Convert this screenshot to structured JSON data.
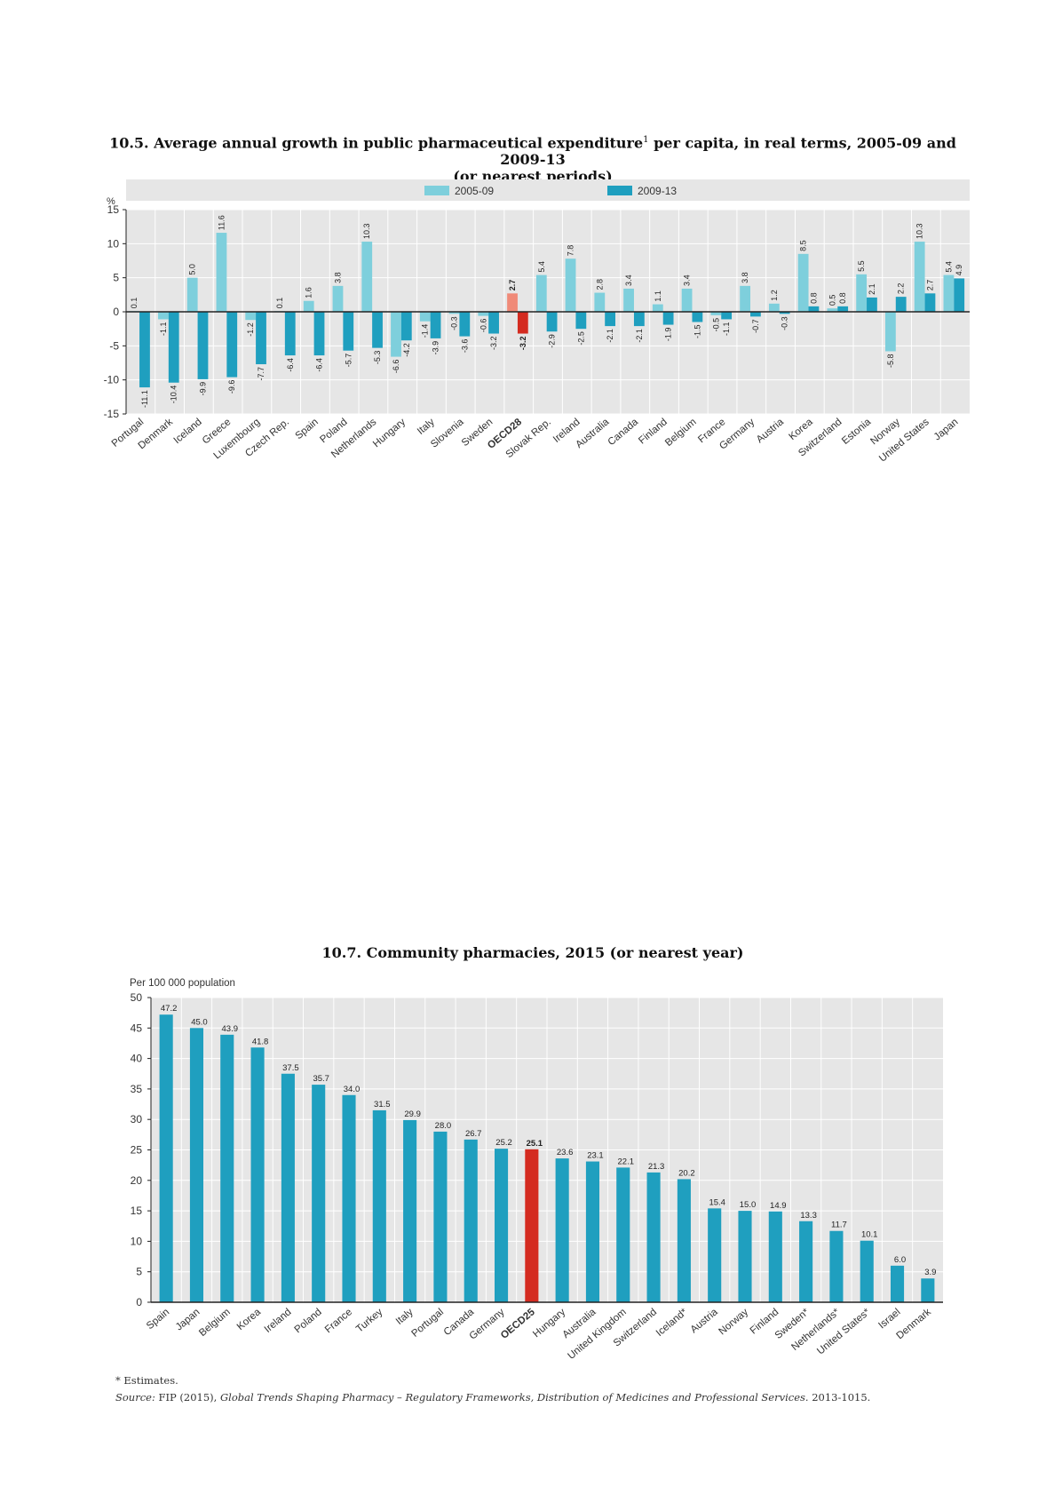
{
  "chart_data": [
    {
      "type": "bar",
      "title_main": "10.5. Average annual growth in public pharmaceutical expenditure",
      "title_sup": "1",
      "title_rest": " per capita, in real terms, 2005-09 and 2009-13",
      "title_line2": "(or nearest periods)",
      "ylabel": "%",
      "ylim": [
        -15,
        15
      ],
      "yticks": [
        15,
        10,
        5,
        0,
        -5,
        -10,
        -15
      ],
      "legend_position": "top",
      "categories": [
        "Portugal",
        "Denmark",
        "Iceland",
        "Greece",
        "Luxembourg",
        "Czech Rep.",
        "Spain",
        "Poland",
        "Netherlands",
        "Hungary",
        "Italy",
        "Slovenia",
        "Sweden",
        "OECD28",
        "Slovak Rep.",
        "Ireland",
        "Australia",
        "Canada",
        "Finland",
        "Belgium",
        "France",
        "Germany",
        "Austria",
        "Korea",
        "Switzerland",
        "Estonia",
        "Norway",
        "United States",
        "Japan"
      ],
      "highlight_category": "OECD28",
      "series": [
        {
          "name": "2005-09",
          "color": "#7ecfdc",
          "highlight_color": "#f08a78",
          "values": [
            0.1,
            -1.1,
            5.0,
            11.6,
            -1.2,
            0.1,
            1.6,
            3.8,
            10.3,
            -6.6,
            -1.4,
            -0.3,
            -0.6,
            2.7,
            5.4,
            7.8,
            2.8,
            3.4,
            1.1,
            3.4,
            -0.5,
            3.8,
            1.2,
            8.5,
            0.5,
            5.5,
            -5.8,
            10.3,
            5.4
          ]
        },
        {
          "name": "2009-13",
          "color": "#1f9fbf",
          "highlight_color": "#d42b20",
          "values": [
            -11.1,
            -10.4,
            -9.9,
            -9.6,
            -7.7,
            -6.4,
            -6.4,
            -5.7,
            -5.3,
            -4.2,
            -3.9,
            -3.6,
            -3.2,
            -3.2,
            -2.9,
            -2.5,
            -2.1,
            -2.1,
            -1.9,
            -1.5,
            -1.1,
            -0.7,
            -0.3,
            0.8,
            0.8,
            2.1,
            2.2,
            2.7,
            4.9
          ]
        }
      ]
    },
    {
      "type": "bar",
      "title": "10.7. Community pharmacies, 2015 (or nearest year)",
      "ylabel": "Per 100 000 population",
      "ylim": [
        0,
        50
      ],
      "yticks": [
        50,
        45,
        40,
        35,
        30,
        25,
        20,
        15,
        10,
        5,
        0
      ],
      "categories": [
        "Spain",
        "Japan",
        "Belgium",
        "Korea",
        "Ireland",
        "Poland",
        "France",
        "Turkey",
        "Italy",
        "Portugal",
        "Canada",
        "Germany",
        "OECD25",
        "Hungary",
        "Australia",
        "United Kingdom",
        "Switzerland",
        "Iceland*",
        "Austria",
        "Norway",
        "Finland",
        "Sweden*",
        "Netherlands*",
        "United States*",
        "Israel",
        "Denmark"
      ],
      "values": [
        47.2,
        45.0,
        43.9,
        41.8,
        37.5,
        35.7,
        34.0,
        31.5,
        29.9,
        28.0,
        26.7,
        25.2,
        25.1,
        23.6,
        23.1,
        22.1,
        21.3,
        20.2,
        15.4,
        15.0,
        14.9,
        13.3,
        11.7,
        10.1,
        6.0,
        3.9
      ],
      "value_labels": [
        "47.2",
        "45.0",
        "43.9",
        "41.8",
        "37.5",
        "35.7",
        "34.0",
        "31.5",
        "29.9",
        "28.0",
        "26.7",
        "25.2",
        "25.1",
        "23.6",
        "23.1",
        "22.1",
        "21.3",
        "20.2",
        "15.4",
        "15.0",
        "14.9",
        "13.3",
        "11.7",
        "10.1",
        "6.0",
        "3.9"
      ],
      "highlight_category": "OECD25",
      "color": "#1f9fbf",
      "highlight_color": "#d42b20"
    }
  ],
  "notes": {
    "estimates": "* Estimates.",
    "source_label": "Source:",
    "source_pre": "FIP (2015),",
    "source_italic": "Global Trends Shaping Pharmacy – Regulatory Frameworks, Distribution of Medicines and Professional Services.",
    "source_post": "2013-1015."
  }
}
